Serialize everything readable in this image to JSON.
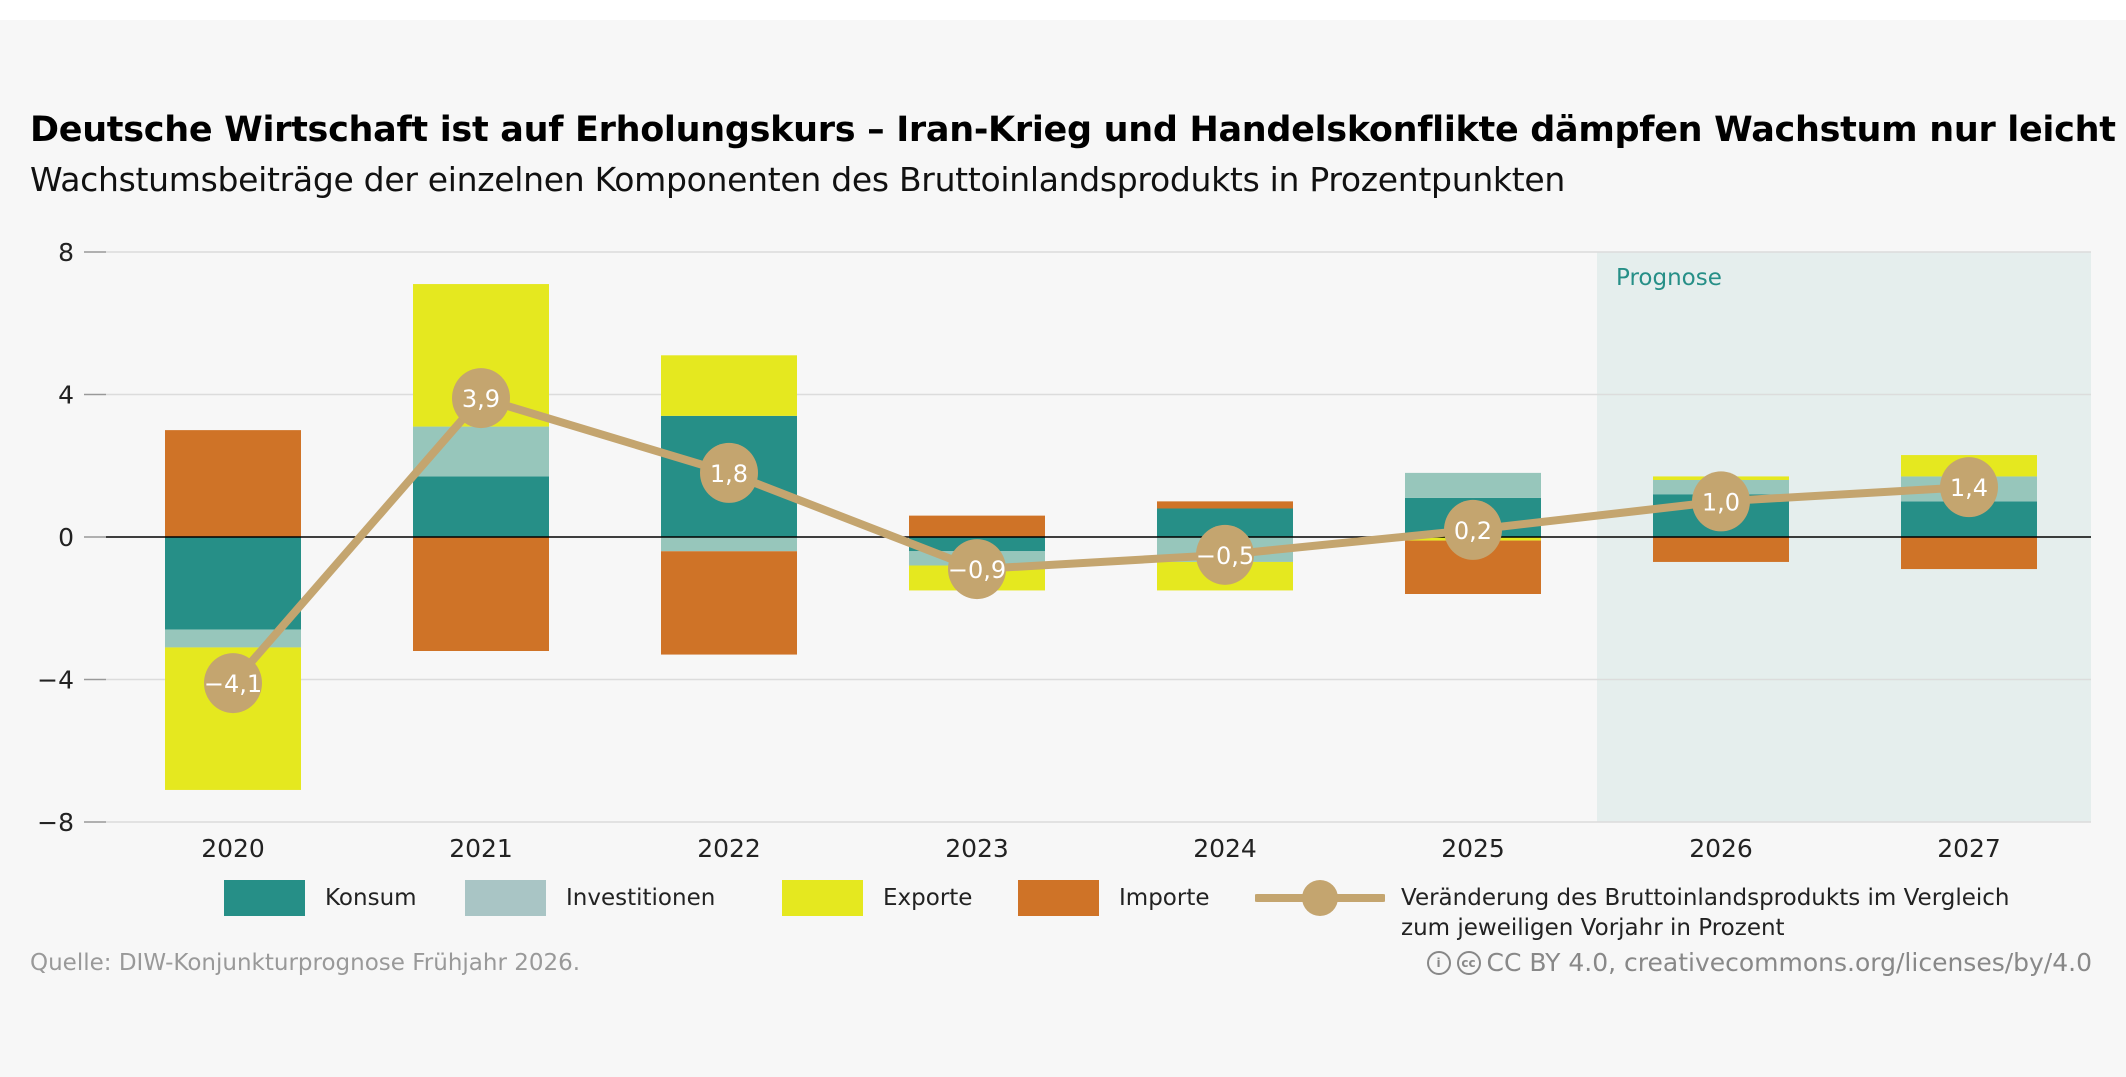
{
  "chart_data": {
    "type": "bar",
    "stacked": true,
    "title": "Deutsche Wirtschaft ist auf Erholungskurs – Iran-Krieg und Handelskonflikte dämpfen Wachstum nur leicht",
    "subtitle": "Wachstumsbeiträge der einzelnen Komponenten des Bruttoinlandsprodukts in Prozentpunkten",
    "categories": [
      "2020",
      "2021",
      "2022",
      "2023",
      "2024",
      "2025",
      "2026",
      "2027"
    ],
    "ylim": [
      -8,
      8
    ],
    "yticks": [
      8,
      4,
      0,
      -4,
      -8
    ],
    "ytick_labels": [
      "8",
      "4",
      "0",
      "−4",
      "−8"
    ],
    "grid": true,
    "forecast_label": "Prognose",
    "forecast_from": "2026",
    "series": [
      {
        "name": "Konsum",
        "color": "#268f87",
        "legend_color": "#268f87",
        "values": [
          -2.6,
          1.7,
          3.4,
          -0.4,
          0.8,
          1.1,
          1.2,
          1.0
        ]
      },
      {
        "name": "Investitionen",
        "color": "#97c6bb",
        "legend_color": "#a9c5c5",
        "values": [
          -0.5,
          1.4,
          -0.4,
          -0.4,
          -0.7,
          0.7,
          0.4,
          0.7
        ]
      },
      {
        "name": "Exporte",
        "color": "#e5e81f",
        "legend_color": "#e5e81f",
        "values": [
          -4.0,
          4.0,
          1.7,
          -0.7,
          -0.8,
          -0.1,
          0.1,
          0.6
        ]
      },
      {
        "name": "Importe",
        "color": "#cf7327",
        "legend_color": "#cf7327",
        "values": [
          3.0,
          -3.2,
          -2.9,
          0.6,
          0.2,
          -1.5,
          -0.7,
          -0.9
        ]
      }
    ],
    "line": {
      "name": "Veränderung des Bruttoinlandsprodukts im Vergleich zum jeweiligen Vorjahr in Prozent",
      "name_line1": "Veränderung des Bruttoinlandsprodukts im Vergleich",
      "name_line2": "zum jeweiligen Vorjahr in Prozent",
      "color": "#c4a56f",
      "values": [
        -4.1,
        3.9,
        1.8,
        -0.9,
        -0.5,
        0.2,
        1.0,
        1.4
      ],
      "labels": [
        "−4,1",
        "3,9",
        "1,8",
        "−0,9",
        "−0,5",
        "0,2",
        "1,0",
        "1,4"
      ]
    }
  },
  "footer": {
    "source": "Quelle: DIW-Konjunkturprognose Frühjahr 2026.",
    "license": "CC BY 4.0, creativecommons.org/licenses/by/4.0"
  }
}
